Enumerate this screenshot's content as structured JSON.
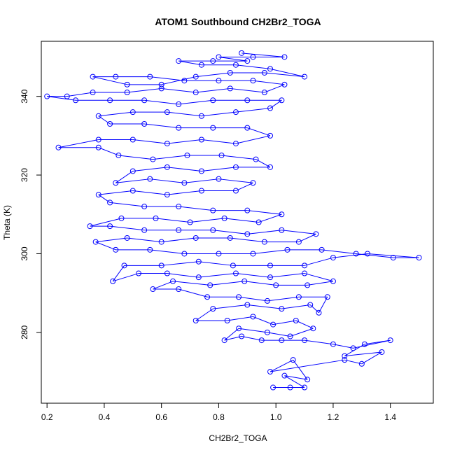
{
  "chart_data": {
    "type": "line",
    "style": "line-with-open-circle-markers",
    "title": "ATOM1 Southbound CH2Br2_TOGA",
    "xlabel": "CH2Br2_TOGA",
    "ylabel": "Theta (K)",
    "xlim": [
      0.18,
      1.55
    ],
    "ylim": [
      262,
      354
    ],
    "x_ticks": [
      0.2,
      0.4,
      0.6,
      0.8,
      1.0,
      1.2,
      1.4
    ],
    "x_tick_labels": [
      "0.2",
      "0.4",
      "0.6",
      "0.8",
      "1.0",
      "1.2",
      "1.4"
    ],
    "y_ticks": [
      280,
      300,
      320,
      340
    ],
    "y_tick_labels": [
      "280",
      "300",
      "320",
      "340"
    ],
    "grid": false,
    "colors": {
      "series": "#0000ff",
      "axes": "#000000"
    },
    "series": [
      {
        "name": "CH2Br2_TOGA",
        "points": [
          {
            "x": 0.99,
            "y": 266
          },
          {
            "x": 1.05,
            "y": 266
          },
          {
            "x": 1.1,
            "y": 266
          },
          {
            "x": 1.03,
            "y": 269
          },
          {
            "x": 1.11,
            "y": 268
          },
          {
            "x": 1.06,
            "y": 273
          },
          {
            "x": 0.98,
            "y": 270
          },
          {
            "x": 1.24,
            "y": 273
          },
          {
            "x": 1.3,
            "y": 272
          },
          {
            "x": 1.37,
            "y": 275
          },
          {
            "x": 1.24,
            "y": 274
          },
          {
            "x": 1.31,
            "y": 277
          },
          {
            "x": 1.4,
            "y": 278
          },
          {
            "x": 1.27,
            "y": 276
          },
          {
            "x": 1.2,
            "y": 277
          },
          {
            "x": 1.1,
            "y": 278
          },
          {
            "x": 1.02,
            "y": 278
          },
          {
            "x": 0.95,
            "y": 278
          },
          {
            "x": 0.88,
            "y": 279
          },
          {
            "x": 0.82,
            "y": 278
          },
          {
            "x": 0.87,
            "y": 281
          },
          {
            "x": 0.97,
            "y": 280
          },
          {
            "x": 1.05,
            "y": 279
          },
          {
            "x": 1.13,
            "y": 281
          },
          {
            "x": 1.07,
            "y": 283
          },
          {
            "x": 0.99,
            "y": 282
          },
          {
            "x": 0.92,
            "y": 284
          },
          {
            "x": 0.83,
            "y": 283
          },
          {
            "x": 0.72,
            "y": 283
          },
          {
            "x": 0.78,
            "y": 286
          },
          {
            "x": 0.9,
            "y": 287
          },
          {
            "x": 1.02,
            "y": 286
          },
          {
            "x": 1.12,
            "y": 287
          },
          {
            "x": 1.15,
            "y": 285
          },
          {
            "x": 1.18,
            "y": 289
          },
          {
            "x": 1.08,
            "y": 289
          },
          {
            "x": 0.97,
            "y": 288
          },
          {
            "x": 0.87,
            "y": 289
          },
          {
            "x": 0.76,
            "y": 289
          },
          {
            "x": 0.66,
            "y": 291
          },
          {
            "x": 0.57,
            "y": 291
          },
          {
            "x": 0.64,
            "y": 293
          },
          {
            "x": 0.77,
            "y": 292
          },
          {
            "x": 0.89,
            "y": 293
          },
          {
            "x": 1.0,
            "y": 292
          },
          {
            "x": 1.11,
            "y": 292
          },
          {
            "x": 1.2,
            "y": 293
          },
          {
            "x": 1.1,
            "y": 295
          },
          {
            "x": 0.98,
            "y": 294
          },
          {
            "x": 0.86,
            "y": 295
          },
          {
            "x": 0.73,
            "y": 294
          },
          {
            "x": 0.62,
            "y": 295
          },
          {
            "x": 0.52,
            "y": 295
          },
          {
            "x": 0.43,
            "y": 293
          },
          {
            "x": 0.47,
            "y": 297
          },
          {
            "x": 0.6,
            "y": 297
          },
          {
            "x": 0.73,
            "y": 298
          },
          {
            "x": 0.85,
            "y": 297
          },
          {
            "x": 0.98,
            "y": 297
          },
          {
            "x": 1.1,
            "y": 297
          },
          {
            "x": 1.2,
            "y": 299
          },
          {
            "x": 1.32,
            "y": 300
          },
          {
            "x": 1.5,
            "y": 299
          },
          {
            "x": 1.41,
            "y": 299
          },
          {
            "x": 1.28,
            "y": 300
          },
          {
            "x": 1.16,
            "y": 301
          },
          {
            "x": 1.04,
            "y": 301
          },
          {
            "x": 0.92,
            "y": 300
          },
          {
            "x": 0.8,
            "y": 300
          },
          {
            "x": 0.68,
            "y": 300
          },
          {
            "x": 0.56,
            "y": 301
          },
          {
            "x": 0.44,
            "y": 301
          },
          {
            "x": 0.37,
            "y": 303
          },
          {
            "x": 0.48,
            "y": 304
          },
          {
            "x": 0.6,
            "y": 303
          },
          {
            "x": 0.72,
            "y": 304
          },
          {
            "x": 0.84,
            "y": 304
          },
          {
            "x": 0.96,
            "y": 303
          },
          {
            "x": 1.08,
            "y": 303
          },
          {
            "x": 1.14,
            "y": 305
          },
          {
            "x": 1.02,
            "y": 306
          },
          {
            "x": 0.9,
            "y": 305
          },
          {
            "x": 0.78,
            "y": 306
          },
          {
            "x": 0.66,
            "y": 306
          },
          {
            "x": 0.54,
            "y": 306
          },
          {
            "x": 0.42,
            "y": 307
          },
          {
            "x": 0.35,
            "y": 307
          },
          {
            "x": 0.46,
            "y": 309
          },
          {
            "x": 0.58,
            "y": 309
          },
          {
            "x": 0.7,
            "y": 308
          },
          {
            "x": 0.82,
            "y": 309
          },
          {
            "x": 0.94,
            "y": 308
          },
          {
            "x": 1.02,
            "y": 310
          },
          {
            "x": 0.9,
            "y": 311
          },
          {
            "x": 0.78,
            "y": 311
          },
          {
            "x": 0.66,
            "y": 312
          },
          {
            "x": 0.54,
            "y": 312
          },
          {
            "x": 0.42,
            "y": 313
          },
          {
            "x": 0.38,
            "y": 315
          },
          {
            "x": 0.5,
            "y": 316
          },
          {
            "x": 0.62,
            "y": 315
          },
          {
            "x": 0.74,
            "y": 316
          },
          {
            "x": 0.86,
            "y": 316
          },
          {
            "x": 0.92,
            "y": 318
          },
          {
            "x": 0.8,
            "y": 319
          },
          {
            "x": 0.68,
            "y": 318
          },
          {
            "x": 0.56,
            "y": 319
          },
          {
            "x": 0.44,
            "y": 318
          },
          {
            "x": 0.5,
            "y": 321
          },
          {
            "x": 0.62,
            "y": 322
          },
          {
            "x": 0.74,
            "y": 321
          },
          {
            "x": 0.86,
            "y": 322
          },
          {
            "x": 0.98,
            "y": 322
          },
          {
            "x": 0.93,
            "y": 324
          },
          {
            "x": 0.81,
            "y": 325
          },
          {
            "x": 0.69,
            "y": 325
          },
          {
            "x": 0.57,
            "y": 324
          },
          {
            "x": 0.45,
            "y": 325
          },
          {
            "x": 0.38,
            "y": 327
          },
          {
            "x": 0.24,
            "y": 327
          },
          {
            "x": 0.38,
            "y": 329
          },
          {
            "x": 0.5,
            "y": 329
          },
          {
            "x": 0.62,
            "y": 328
          },
          {
            "x": 0.74,
            "y": 329
          },
          {
            "x": 0.86,
            "y": 328
          },
          {
            "x": 0.98,
            "y": 330
          },
          {
            "x": 0.9,
            "y": 332
          },
          {
            "x": 0.78,
            "y": 332
          },
          {
            "x": 0.66,
            "y": 332
          },
          {
            "x": 0.54,
            "y": 333
          },
          {
            "x": 0.42,
            "y": 333
          },
          {
            "x": 0.38,
            "y": 335
          },
          {
            "x": 0.5,
            "y": 336
          },
          {
            "x": 0.62,
            "y": 336
          },
          {
            "x": 0.74,
            "y": 335
          },
          {
            "x": 0.86,
            "y": 336
          },
          {
            "x": 0.98,
            "y": 337
          },
          {
            "x": 1.02,
            "y": 339
          },
          {
            "x": 0.9,
            "y": 339
          },
          {
            "x": 0.78,
            "y": 339
          },
          {
            "x": 0.66,
            "y": 338
          },
          {
            "x": 0.54,
            "y": 339
          },
          {
            "x": 0.42,
            "y": 339
          },
          {
            "x": 0.3,
            "y": 339
          },
          {
            "x": 0.2,
            "y": 340
          },
          {
            "x": 0.27,
            "y": 340
          },
          {
            "x": 0.36,
            "y": 341
          },
          {
            "x": 0.48,
            "y": 341
          },
          {
            "x": 0.6,
            "y": 342
          },
          {
            "x": 0.72,
            "y": 341
          },
          {
            "x": 0.84,
            "y": 342
          },
          {
            "x": 0.96,
            "y": 341
          },
          {
            "x": 1.03,
            "y": 343
          },
          {
            "x": 0.92,
            "y": 344
          },
          {
            "x": 0.8,
            "y": 344
          },
          {
            "x": 0.68,
            "y": 344
          },
          {
            "x": 0.56,
            "y": 345
          },
          {
            "x": 0.44,
            "y": 345
          },
          {
            "x": 0.36,
            "y": 345
          },
          {
            "x": 0.48,
            "y": 343
          },
          {
            "x": 0.6,
            "y": 343
          },
          {
            "x": 0.72,
            "y": 345
          },
          {
            "x": 0.84,
            "y": 346
          },
          {
            "x": 0.96,
            "y": 346
          },
          {
            "x": 1.1,
            "y": 345
          },
          {
            "x": 0.98,
            "y": 347
          },
          {
            "x": 0.86,
            "y": 348
          },
          {
            "x": 0.74,
            "y": 348
          },
          {
            "x": 0.66,
            "y": 349
          },
          {
            "x": 0.78,
            "y": 349
          },
          {
            "x": 0.9,
            "y": 349
          },
          {
            "x": 0.8,
            "y": 350
          },
          {
            "x": 0.92,
            "y": 350
          },
          {
            "x": 1.03,
            "y": 350
          },
          {
            "x": 0.88,
            "y": 351
          }
        ]
      }
    ]
  }
}
